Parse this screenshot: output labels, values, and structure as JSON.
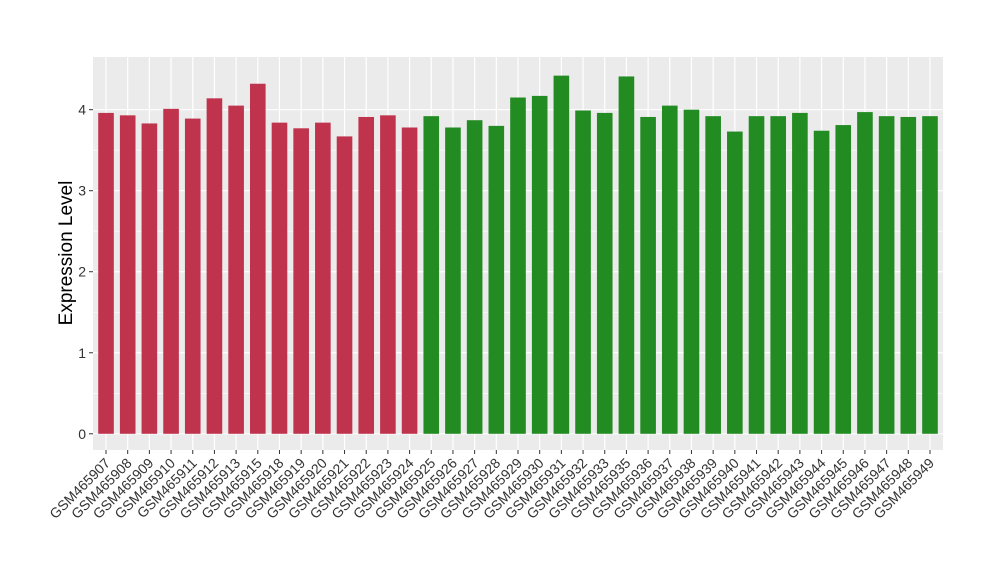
{
  "chart_data": {
    "type": "bar",
    "title": "",
    "xlabel": "",
    "ylabel": "Expression Level",
    "ylim": [
      -0.2,
      4.65
    ],
    "yticks": [
      0,
      1,
      2,
      3,
      4
    ],
    "grid": true,
    "legend": "none",
    "categories": [
      "GSM465907",
      "GSM465908",
      "GSM465909",
      "GSM465910",
      "GSM465911",
      "GSM465912",
      "GSM465913",
      "GSM465915",
      "GSM465918",
      "GSM465919",
      "GSM465920",
      "GSM465921",
      "GSM465922",
      "GSM465923",
      "GSM465924",
      "GSM465925",
      "GSM465926",
      "GSM465927",
      "GSM465928",
      "GSM465929",
      "GSM465930",
      "GSM465931",
      "GSM465932",
      "GSM465933",
      "GSM465935",
      "GSM465936",
      "GSM465937",
      "GSM465938",
      "GSM465939",
      "GSM465940",
      "GSM465941",
      "GSM465942",
      "GSM465943",
      "GSM465944",
      "GSM465945",
      "GSM465946",
      "GSM465947",
      "GSM465948",
      "GSM465949"
    ],
    "values": [
      3.96,
      3.93,
      3.83,
      4.01,
      3.89,
      4.14,
      4.05,
      4.32,
      3.84,
      3.77,
      3.84,
      3.67,
      3.91,
      3.93,
      3.78,
      3.92,
      3.78,
      3.87,
      3.8,
      4.15,
      4.17,
      4.42,
      3.99,
      3.96,
      4.41,
      3.91,
      4.05,
      4.0,
      3.92,
      3.73,
      3.92,
      3.92,
      3.96,
      3.74,
      3.81,
      3.97,
      3.92,
      3.91,
      3.92
    ],
    "bar_colors": [
      "#c0334d",
      "#c0334d",
      "#c0334d",
      "#c0334d",
      "#c0334d",
      "#c0334d",
      "#c0334d",
      "#c0334d",
      "#c0334d",
      "#c0334d",
      "#c0334d",
      "#c0334d",
      "#c0334d",
      "#c0334d",
      "#c0334d",
      "#228b22",
      "#228b22",
      "#228b22",
      "#228b22",
      "#228b22",
      "#228b22",
      "#228b22",
      "#228b22",
      "#228b22",
      "#228b22",
      "#228b22",
      "#228b22",
      "#228b22",
      "#228b22",
      "#228b22",
      "#228b22",
      "#228b22",
      "#228b22",
      "#228b22",
      "#228b22",
      "#228b22",
      "#228b22",
      "#228b22",
      "#228b22"
    ],
    "panel_background": "#ebebeb",
    "grid_color": "#ffffff"
  }
}
